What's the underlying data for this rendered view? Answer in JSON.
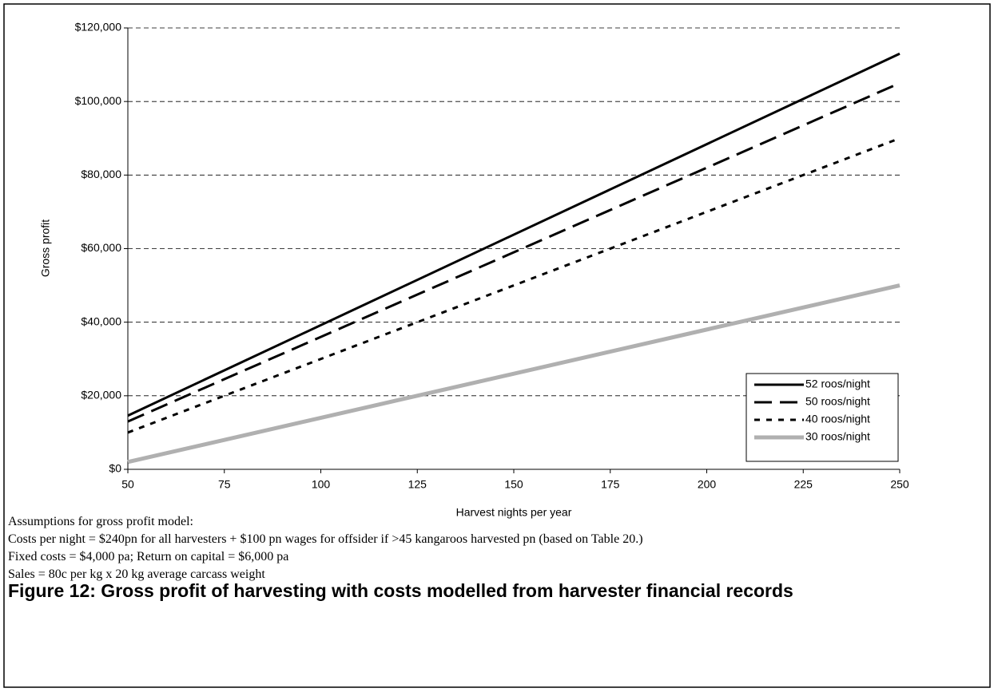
{
  "chart_data": {
    "type": "line",
    "xlabel": "Harvest nights per year",
    "ylabel": "Gross profit",
    "x": [
      50,
      250
    ],
    "series": [
      {
        "name": "52 roos/night",
        "color": "#000000",
        "dash": "solid",
        "values": [
          14600,
          113000
        ]
      },
      {
        "name": "50 roos/night",
        "color": "#000000",
        "dash": "dashed",
        "values": [
          13000,
          105000
        ]
      },
      {
        "name": "40 roos/night",
        "color": "#000000",
        "dash": "dotted",
        "values": [
          10000,
          90000
        ]
      },
      {
        "name": "30 roos/night",
        "color": "#b0b0b0",
        "dash": "solid",
        "values": [
          2000,
          50000
        ]
      }
    ],
    "xlim": [
      50,
      250
    ],
    "xticks": [
      50,
      75,
      100,
      125,
      150,
      175,
      200,
      225,
      250
    ],
    "ylim": [
      0,
      120000
    ],
    "yticks": [
      {
        "value": 0,
        "label": "$0"
      },
      {
        "value": 20000,
        "label": "$20,000"
      },
      {
        "value": 40000,
        "label": "$40,000"
      },
      {
        "value": 60000,
        "label": "$60,000"
      },
      {
        "value": 80000,
        "label": "$80,000"
      },
      {
        "value": 100000,
        "label": "$100,000"
      },
      {
        "value": 120000,
        "label": "$120,000"
      }
    ],
    "grid": true,
    "legend": "lower right"
  },
  "notes": [
    "Assumptions for gross profit model:",
    "Costs per night = $240pn for all harvesters + $100 pn wages for offsider if >45 kangaroos harvested pn (based on Table 20.)",
    "Fixed costs = $4,000 pa; Return on capital = $6,000 pa",
    "Sales = 80c per kg x 20 kg average carcass weight"
  ],
  "caption": "Figure 12: Gross profit of harvesting with costs modelled from harvester financial records"
}
